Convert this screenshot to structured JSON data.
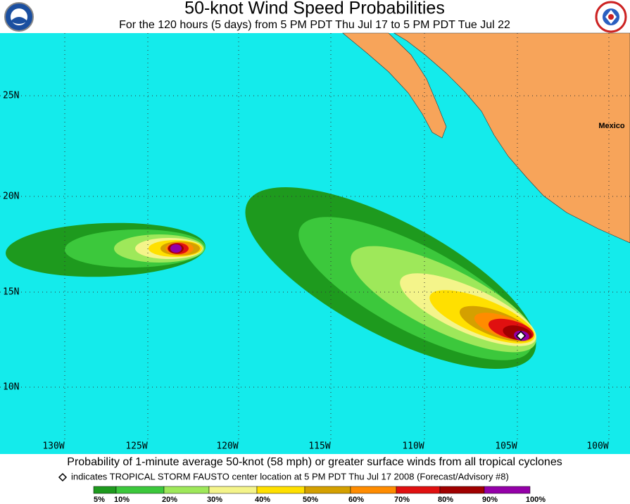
{
  "header": {
    "title": "50-knot Wind Speed Probabilities",
    "subtitle": "For the 120 hours (5 days) from 5 PM PDT Thu Jul 17 to 5 PM PDT Tue Jul 22"
  },
  "map": {
    "latitudes": [
      "25N",
      "20N",
      "15N",
      "10N"
    ],
    "longitudes": [
      "130W",
      "125W",
      "120W",
      "115W",
      "110W",
      "105W",
      "100W"
    ],
    "place_label": "Mexico"
  },
  "footer": {
    "caption": "Probability of 1-minute average 50-knot (58 mph) or greater surface winds from all tropical cyclones",
    "note": "indicates TROPICAL STORM FAUSTO center location at 5 PM PDT Thu Jul 17 2008 (Forecast/Advisory #8)"
  },
  "legend": {
    "labels": [
      "5%",
      "10%",
      "20%",
      "30%",
      "40%",
      "50%",
      "60%",
      "70%",
      "80%",
      "90%",
      "100%"
    ],
    "colors": [
      "#1e9a1e",
      "#3cc83c",
      "#9ee85a",
      "#f4f48a",
      "#ffe000",
      "#d4a000",
      "#ff8c00",
      "#e01010",
      "#a00000",
      "#9400a8"
    ]
  }
}
